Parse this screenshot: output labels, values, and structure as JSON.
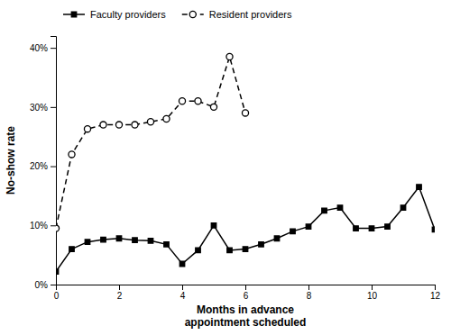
{
  "chart_data": {
    "type": "line",
    "xlabel": "Months in advance\nappointment scheduled",
    "ylabel": "No-show rate",
    "series": [
      {
        "name": "Faculty providers",
        "color": "black",
        "marker": "square",
        "line_style": "solid",
        "x": [
          0,
          0.5,
          1,
          1.5,
          2,
          2.5,
          3,
          3.5,
          4,
          4.5,
          5,
          5.5,
          6,
          6.5,
          7,
          7.5,
          8,
          8.5,
          9,
          9.5,
          10,
          10.5,
          11,
          11.5,
          12
        ],
        "values": [
          0.022,
          0.06,
          0.072,
          0.076,
          0.078,
          0.075,
          0.074,
          0.068,
          0.035,
          0.058,
          0.1,
          0.058,
          0.06,
          0.068,
          0.078,
          0.09,
          0.098,
          0.125,
          0.13,
          0.095,
          0.095,
          0.098,
          0.13,
          0.165,
          0.093
        ]
      },
      {
        "name": "Resident providers",
        "color": "black",
        "marker": "open-circle",
        "line_style": "dashed",
        "x": [
          0,
          0.5,
          1,
          1.5,
          2,
          2.5,
          3,
          3.5,
          4,
          4.5,
          5,
          5.5,
          6
        ],
        "values": [
          0.095,
          0.22,
          0.263,
          0.27,
          0.27,
          0.27,
          0.275,
          0.28,
          0.31,
          0.31,
          0.3,
          0.385,
          0.29
        ]
      }
    ],
    "xlim": [
      0,
      12
    ],
    "ylim": [
      0,
      0.42
    ],
    "xticks": [
      0,
      2,
      4,
      6,
      8,
      10,
      12
    ],
    "yticks": [
      {
        "value": 0,
        "label": "0%"
      },
      {
        "value": 0.1,
        "label": "10%"
      },
      {
        "value": 0.2,
        "label": "20%"
      },
      {
        "value": 0.3,
        "label": "30%"
      },
      {
        "value": 0.4,
        "label": "40%"
      }
    ],
    "legend": "upper left",
    "grid": false
  }
}
